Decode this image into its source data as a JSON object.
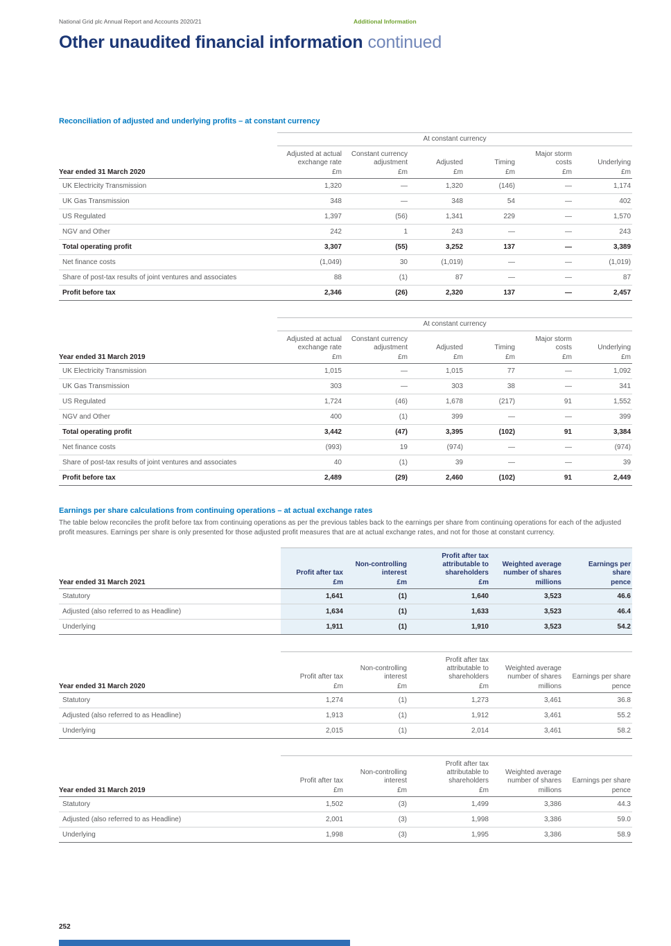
{
  "header": {
    "report_title": "National Grid plc Annual Report and Accounts 2020/21",
    "section_tag": "Additional Information",
    "page_title_bold": "Other unaudited financial information",
    "page_title_light": "continued"
  },
  "section1": {
    "heading": "Reconciliation of adjusted and underlying profits – at constant currency",
    "tables": [
      {
        "span_header": "At constant currency",
        "year_label": "Year ended 31 March 2020",
        "columns": [
          "Adjusted at actual exchange rate",
          "Constant currency adjustment",
          "Adjusted",
          "Timing",
          "Major storm costs",
          "Underlying"
        ],
        "units": [
          "£m",
          "£m",
          "£m",
          "£m",
          "£m",
          "£m"
        ],
        "rows": [
          {
            "label": "UK Electricity Transmission",
            "bold": false,
            "values": [
              "1,320",
              "—",
              "1,320",
              "(146)",
              "—",
              "1,174"
            ]
          },
          {
            "label": "UK Gas Transmission",
            "bold": false,
            "values": [
              "348",
              "—",
              "348",
              "54",
              "—",
              "402"
            ]
          },
          {
            "label": "US Regulated",
            "bold": false,
            "values": [
              "1,397",
              "(56)",
              "1,341",
              "229",
              "—",
              "1,570"
            ]
          },
          {
            "label": "NGV and Other",
            "bold": false,
            "values": [
              "242",
              "1",
              "243",
              "—",
              "—",
              "243"
            ]
          },
          {
            "label": "Total operating profit",
            "bold": true,
            "values": [
              "3,307",
              "(55)",
              "3,252",
              "137",
              "—",
              "3,389"
            ]
          },
          {
            "label": "Net finance costs",
            "bold": false,
            "values": [
              "(1,049)",
              "30",
              "(1,019)",
              "—",
              "—",
              "(1,019)"
            ]
          },
          {
            "label": "Share of post-tax results of joint ventures and associates",
            "bold": false,
            "values": [
              "88",
              "(1)",
              "87",
              "—",
              "—",
              "87"
            ]
          },
          {
            "label": "Profit before tax",
            "bold": true,
            "values": [
              "2,346",
              "(26)",
              "2,320",
              "137",
              "—",
              "2,457"
            ]
          }
        ]
      },
      {
        "span_header": "At constant currency",
        "year_label": "Year ended 31 March 2019",
        "columns": [
          "Adjusted at actual exchange rate",
          "Constant currency adjustment",
          "Adjusted",
          "Timing",
          "Major storm costs",
          "Underlying"
        ],
        "units": [
          "£m",
          "£m",
          "£m",
          "£m",
          "£m",
          "£m"
        ],
        "rows": [
          {
            "label": "UK Electricity Transmission",
            "bold": false,
            "values": [
              "1,015",
              "—",
              "1,015",
              "77",
              "—",
              "1,092"
            ]
          },
          {
            "label": "UK Gas Transmission",
            "bold": false,
            "values": [
              "303",
              "—",
              "303",
              "38",
              "—",
              "341"
            ]
          },
          {
            "label": "US Regulated",
            "bold": false,
            "values": [
              "1,724",
              "(46)",
              "1,678",
              "(217)",
              "91",
              "1,552"
            ]
          },
          {
            "label": "NGV and Other",
            "bold": false,
            "values": [
              "400",
              "(1)",
              "399",
              "—",
              "—",
              "399"
            ]
          },
          {
            "label": "Total operating profit",
            "bold": true,
            "values": [
              "3,442",
              "(47)",
              "3,395",
              "(102)",
              "91",
              "3,384"
            ]
          },
          {
            "label": "Net finance costs",
            "bold": false,
            "values": [
              "(993)",
              "19",
              "(974)",
              "—",
              "—",
              "(974)"
            ]
          },
          {
            "label": "Share of post-tax results of joint ventures and associates",
            "bold": false,
            "values": [
              "40",
              "(1)",
              "39",
              "—",
              "—",
              "39"
            ]
          },
          {
            "label": "Profit before tax",
            "bold": true,
            "values": [
              "2,489",
              "(29)",
              "2,460",
              "(102)",
              "91",
              "2,449"
            ]
          }
        ]
      }
    ]
  },
  "section2": {
    "heading": "Earnings per share calculations from continuing operations – at actual exchange rates",
    "intro": "The table below reconciles the profit before tax from continuing operations as per the previous tables back to the earnings per share from continuing operations for each of the adjusted profit measures. Earnings per share is only presented for those adjusted profit measures that are at actual exchange rates, and not for those at constant currency.",
    "tables": [
      {
        "year_label": "Year ended 31 March 2021",
        "columns": [
          "Profit after tax",
          "Non-controlling interest",
          "Profit after tax attributable to shareholders",
          "Weighted average number of shares",
          "Earnings per share"
        ],
        "units": [
          "£m",
          "£m",
          "£m",
          "millions",
          "pence"
        ],
        "rows": [
          {
            "label": "Statutory",
            "bold": false,
            "values": [
              "1,641",
              "(1)",
              "1,640",
              "3,523",
              "46.6"
            ]
          },
          {
            "label": "Adjusted (also referred to as Headline)",
            "bold": false,
            "values": [
              "1,634",
              "(1)",
              "1,633",
              "3,523",
              "46.4"
            ]
          },
          {
            "label": "Underlying",
            "bold": false,
            "values": [
              "1,911",
              "(1)",
              "1,910",
              "3,523",
              "54.2"
            ]
          }
        ]
      },
      {
        "year_label": "Year ended 31 March 2020",
        "columns": [
          "Profit after tax",
          "Non-controlling interest",
          "Profit after tax attributable to shareholders",
          "Weighted average number of shares",
          "Earnings per share"
        ],
        "units": [
          "£m",
          "£m",
          "£m",
          "millions",
          "pence"
        ],
        "rows": [
          {
            "label": "Statutory",
            "bold": false,
            "values": [
              "1,274",
              "(1)",
              "1,273",
              "3,461",
              "36.8"
            ]
          },
          {
            "label": "Adjusted (also referred to as Headline)",
            "bold": false,
            "values": [
              "1,913",
              "(1)",
              "1,912",
              "3,461",
              "55.2"
            ]
          },
          {
            "label": "Underlying",
            "bold": false,
            "values": [
              "2,015",
              "(1)",
              "2,014",
              "3,461",
              "58.2"
            ]
          }
        ]
      },
      {
        "year_label": "Year ended 31 March 2019",
        "columns": [
          "Profit after tax",
          "Non-controlling interest",
          "Profit after tax attributable to shareholders",
          "Weighted average number of shares",
          "Earnings per share"
        ],
        "units": [
          "£m",
          "£m",
          "£m",
          "millions",
          "pence"
        ],
        "rows": [
          {
            "label": "Statutory",
            "bold": false,
            "values": [
              "1,502",
              "(3)",
              "1,499",
              "3,386",
              "44.3"
            ]
          },
          {
            "label": "Adjusted (also referred to as Headline)",
            "bold": false,
            "values": [
              "2,001",
              "(3)",
              "1,998",
              "3,386",
              "59.0"
            ]
          },
          {
            "label": "Underlying",
            "bold": false,
            "values": [
              "1,998",
              "(3)",
              "1,995",
              "3,386",
              "58.9"
            ]
          }
        ]
      }
    ]
  },
  "footer": {
    "page_number": "252"
  }
}
